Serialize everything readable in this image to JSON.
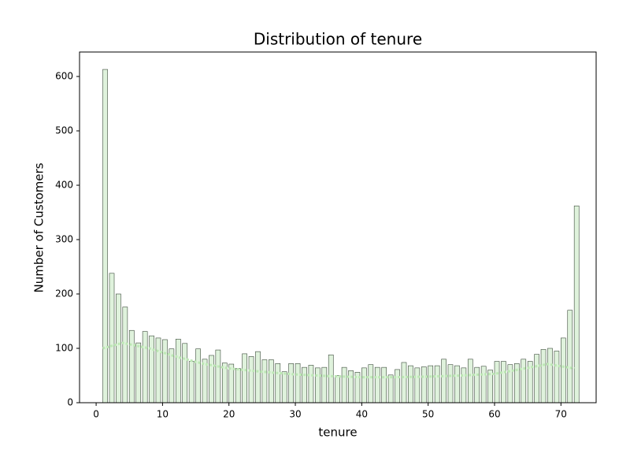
{
  "chart_data": {
    "type": "bar",
    "title": "Distribution of tenure",
    "xlabel": "tenure",
    "ylabel": "Number of Customers",
    "x": [
      1,
      2,
      3,
      4,
      5,
      6,
      7,
      8,
      9,
      10,
      11,
      12,
      13,
      14,
      15,
      16,
      17,
      18,
      19,
      20,
      21,
      22,
      23,
      24,
      25,
      26,
      27,
      28,
      29,
      30,
      31,
      32,
      33,
      34,
      35,
      36,
      37,
      38,
      39,
      40,
      41,
      42,
      43,
      44,
      45,
      46,
      47,
      48,
      49,
      50,
      51,
      52,
      53,
      54,
      55,
      56,
      57,
      58,
      59,
      60,
      61,
      62,
      63,
      64,
      65,
      66,
      67,
      68,
      69,
      70,
      71,
      72
    ],
    "values": [
      613,
      238,
      200,
      176,
      133,
      110,
      131,
      123,
      119,
      116,
      99,
      117,
      109,
      76,
      99,
      80,
      87,
      97,
      73,
      71,
      63,
      90,
      85,
      94,
      79,
      79,
      72,
      57,
      72,
      72,
      65,
      69,
      64,
      65,
      88,
      50,
      65,
      59,
      56,
      64,
      70,
      65,
      65,
      51,
      61,
      74,
      68,
      64,
      66,
      68,
      68,
      80,
      70,
      68,
      64,
      80,
      65,
      67,
      60,
      76,
      76,
      70,
      72,
      80,
      76,
      89,
      98,
      100,
      95,
      119,
      170,
      362
    ],
    "color": "#dff2dc",
    "edgecolor": "#3b4a3a",
    "line": {
      "x": [
        1,
        4,
        8,
        12,
        16,
        20,
        25,
        30,
        35,
        40,
        45,
        50,
        55,
        60,
        65,
        68,
        72
      ],
      "values": [
        100,
        110,
        100,
        85,
        72,
        63,
        57,
        52,
        49,
        47,
        47,
        48,
        50,
        53,
        64,
        71,
        63
      ],
      "color": "#bde8b5"
    },
    "xlim": [
      -2.5,
      75.3
    ],
    "ylim": [
      0,
      645
    ],
    "xticks": [
      0,
      10,
      20,
      30,
      40,
      50,
      60,
      70
    ],
    "yticks": [
      0,
      100,
      200,
      300,
      400,
      500,
      600
    ]
  }
}
